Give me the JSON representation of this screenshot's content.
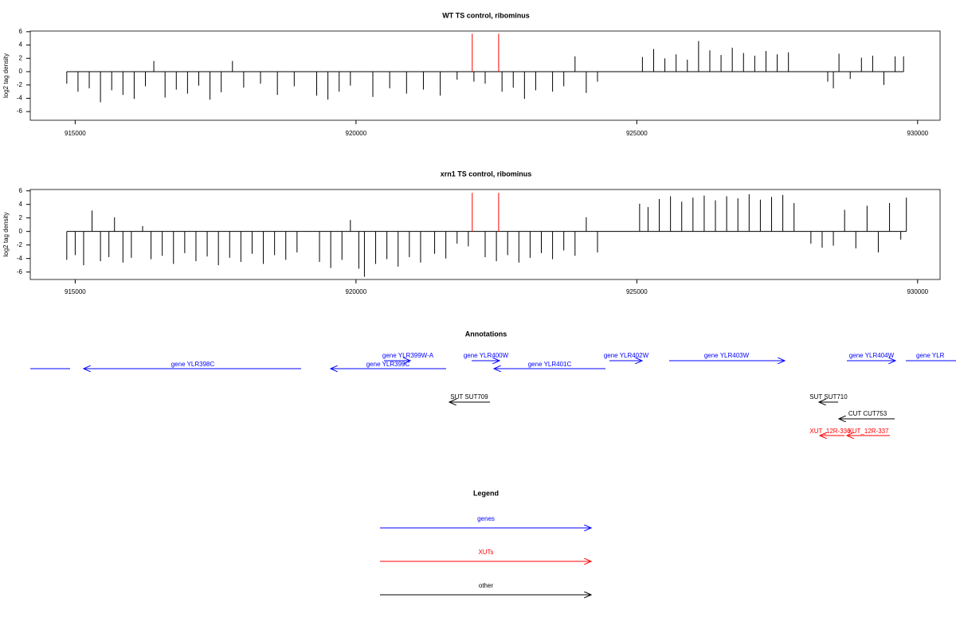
{
  "chart_data": [
    {
      "type": "spike",
      "title": "WT TS control, ribominus",
      "ylabel": "log2 tag density",
      "xlim": [
        914200,
        930400
      ],
      "ylim": [
        -7.3,
        6.1
      ],
      "xticks": [
        915000,
        920000,
        925000,
        930000
      ],
      "yticks": [
        -6,
        -4,
        -2,
        0,
        2,
        4,
        6
      ],
      "series": [
        {
          "color": "#000000",
          "x": [
            914850,
            915050,
            915250,
            915450,
            915650,
            915850,
            916050,
            916250,
            916400,
            916600,
            916800,
            917000,
            917200,
            917400,
            917600,
            917800,
            918000,
            918300,
            918600,
            918900,
            919300,
            919500,
            919700,
            919900,
            920300,
            920600,
            920900,
            921200,
            921500,
            921800,
            922100,
            922300,
            922600,
            922800,
            923000,
            923200,
            923500,
            923700,
            923900,
            924100,
            924300,
            925100,
            925300,
            925500,
            925700,
            925900,
            926100,
            926300,
            926500,
            926700,
            926900,
            927100,
            927300,
            927500,
            927700,
            928400,
            928500,
            928600,
            928800,
            929000,
            929200,
            929400,
            929600,
            929750
          ],
          "values": [
            -1.8,
            -3,
            -2.5,
            -4.6,
            -2.8,
            -3.5,
            -4.1,
            -2.2,
            1.6,
            -3.9,
            -2.7,
            -3.3,
            -2.1,
            -4.2,
            -3.1,
            1.6,
            -2.4,
            -1.8,
            -3.5,
            -2.2,
            -3.6,
            -4.2,
            -3,
            -2.1,
            -3.8,
            -2.5,
            -3.3,
            -2.7,
            -3.6,
            -1.2,
            -1.5,
            -1.8,
            -3,
            -2.4,
            -4.1,
            -2.8,
            -3,
            -2.2,
            2.3,
            -3.2,
            -1.5,
            2.2,
            3.4,
            2,
            2.6,
            1.8,
            4.6,
            3.2,
            2.5,
            3.6,
            2.8,
            2.4,
            3.1,
            2.6,
            2.9,
            -1.5,
            -2.5,
            2.7,
            -1.1,
            2.1,
            2.4,
            -2,
            2.3,
            2.3
          ]
        },
        {
          "color": "#ff0000",
          "x": [
            922070,
            922540
          ],
          "values": [
            5.7,
            5.7
          ]
        }
      ]
    },
    {
      "type": "spike",
      "title": "xrn1 TS control, ribominus",
      "ylabel": "log2 tag density",
      "xlim": [
        914200,
        930400
      ],
      "ylim": [
        -7.1,
        6.2
      ],
      "xticks": [
        915000,
        920000,
        925000,
        930000
      ],
      "yticks": [
        -6,
        -4,
        -2,
        0,
        2,
        4,
        6
      ],
      "series": [
        {
          "color": "#000000",
          "x": [
            914850,
            915000,
            915150,
            915300,
            915450,
            915600,
            915700,
            915850,
            916000,
            916200,
            916350,
            916550,
            916750,
            916950,
            917150,
            917350,
            917550,
            917750,
            917950,
            918150,
            918350,
            918550,
            918750,
            918950,
            919350,
            919550,
            919750,
            919900,
            920050,
            920150,
            920350,
            920550,
            920750,
            920950,
            921150,
            921400,
            921600,
            921800,
            922000,
            922300,
            922500,
            922700,
            922900,
            923100,
            923300,
            923500,
            923700,
            923900,
            924100,
            924300,
            925050,
            925200,
            925400,
            925600,
            925800,
            926000,
            926200,
            926400,
            926600,
            926800,
            927000,
            927200,
            927400,
            927600,
            927800,
            928100,
            928300,
            928500,
            928700,
            928900,
            929100,
            929300,
            929500,
            929700,
            929800
          ],
          "values": [
            -4.2,
            -3.5,
            -5,
            3.1,
            -4.4,
            -3.8,
            2.1,
            -4.6,
            -3.9,
            0.8,
            -4.1,
            -3.6,
            -4.8,
            -3.2,
            -4.4,
            -3.7,
            -5,
            -3.9,
            -4.5,
            -3.3,
            -4.8,
            -3.5,
            -4.2,
            -3.1,
            -4.5,
            -5.4,
            -4.2,
            1.7,
            -5.5,
            -6.7,
            -4.8,
            -4.1,
            -5.2,
            -3.8,
            -4.6,
            -3.3,
            -4,
            -1.8,
            -2.2,
            -3.8,
            -4.4,
            -3.5,
            -4.6,
            -3.9,
            -3.2,
            -4.1,
            -2.8,
            -3.6,
            2.1,
            -3.1,
            4.1,
            3.6,
            4.8,
            5.2,
            4.4,
            5,
            5.3,
            4.6,
            5.2,
            4.9,
            5.5,
            4.7,
            5.1,
            5.4,
            4.2,
            -1.8,
            -2.4,
            -2.1,
            3.2,
            -2.5,
            3.8,
            -3.1,
            4.2,
            -1.2,
            5
          ]
        },
        {
          "color": "#ff0000",
          "x": [
            922070,
            922540
          ],
          "values": [
            5.7,
            5.7
          ]
        }
      ]
    }
  ],
  "annotations": {
    "title": "Annotations",
    "features": [
      {
        "color": "#0000ff"
      },
      {
        "label": "gene YLR398C",
        "color": "#0000ff"
      },
      {
        "label": "gene YLR399W-A",
        "color": "#0000ff"
      },
      {
        "label": "gene YLR399C",
        "color": "#0000ff"
      },
      {
        "label": "gene YLR400W",
        "color": "#0000ff"
      },
      {
        "label": "gene YLR401C",
        "color": "#0000ff"
      },
      {
        "label": "gene YLR402W",
        "color": "#0000ff"
      },
      {
        "label": "gene YLR403W",
        "color": "#0000ff"
      },
      {
        "label": "gene YLR404W",
        "color": "#0000ff"
      },
      {
        "label": "gene YLR",
        "color": "#0000ff"
      },
      {
        "label": "SUT SUT709",
        "color": "#000000"
      },
      {
        "label": "SUT SUT710",
        "color": "#000000"
      },
      {
        "label": "CUT CUT753",
        "color": "#000000"
      },
      {
        "label": "XUT_12R-336",
        "color": "#ff0000"
      },
      {
        "label": "XUT_12R-337",
        "color": "#ff0000"
      }
    ]
  },
  "legend": {
    "title": "Legend",
    "items": [
      {
        "label": "genes",
        "color": "#0000ff"
      },
      {
        "label": "XUTs",
        "color": "#ff0000"
      },
      {
        "label": "other",
        "color": "#000000"
      }
    ]
  }
}
